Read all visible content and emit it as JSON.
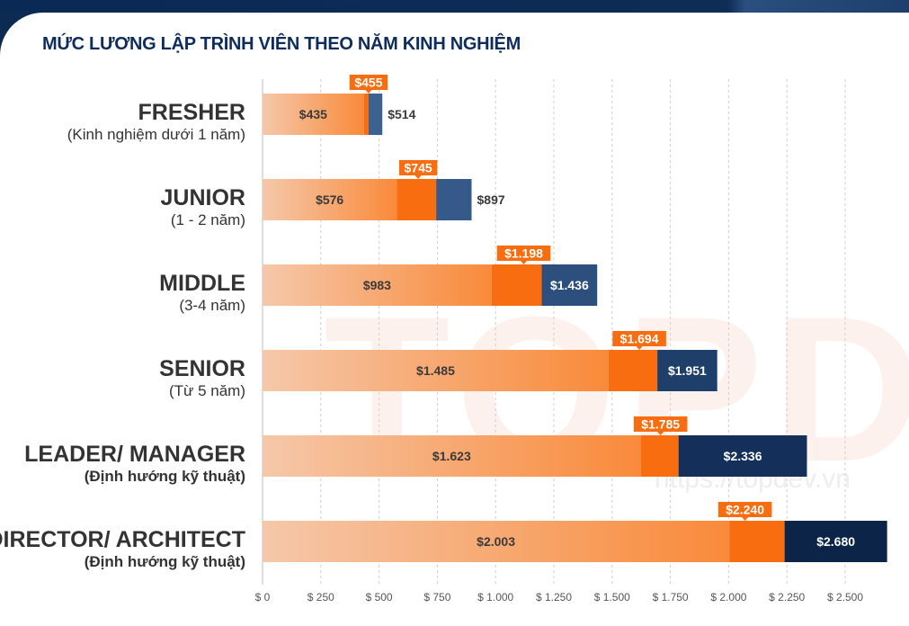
{
  "title": "MỨC LƯƠNG LẬP TRÌNH VIÊN THEO NĂM KINH NGHIỆM",
  "watermark": {
    "logo": "TOPDEV",
    "url": "https://topdev.vn"
  },
  "colors": {
    "low_start": "#f5c8aa",
    "low_end": "#f98a3a",
    "median": "#f76d0f",
    "high": [
      "#3d6291",
      "#355a8a",
      "#2c4f7e",
      "#1f3f6b",
      "#132f5a",
      "#0b2448"
    ],
    "title": "#0f2d5c"
  },
  "chart_data": {
    "type": "bar",
    "orientation": "horizontal",
    "stacked_ranges": true,
    "title": "MỨC LƯƠNG LẬP TRÌNH VIÊN THEO NĂM KINH NGHIỆM",
    "xlim": [
      0,
      2680
    ],
    "grid": true,
    "x_ticks": [
      0,
      250,
      500,
      750,
      1000,
      1250,
      1500,
      1750,
      2000,
      2250,
      2500
    ],
    "x_tick_labels": [
      "$ 0",
      "$ 250",
      "$ 500",
      "$ 750",
      "$ 1.000",
      "$ 1.250",
      "$ 1.500",
      "$ 1.750",
      "$ 2.000",
      "$ 2.250",
      "$ 2.500"
    ],
    "categories": [
      {
        "name": "FRESHER",
        "sub": "(Kinh nghiệm dưới 1 năm)",
        "sub_bold": false
      },
      {
        "name": "JUNIOR",
        "sub": "(1 - 2 năm)",
        "sub_bold": false
      },
      {
        "name": "MIDDLE",
        "sub": "(3-4 năm)",
        "sub_bold": false
      },
      {
        "name": "SENIOR",
        "sub": "(Từ 5 năm)",
        "sub_bold": false
      },
      {
        "name": "LEADER/ MANAGER",
        "sub": "(Định hướng kỹ thuật)",
        "sub_bold": true
      },
      {
        "name": "DIRECTOR/ ARCHITECT",
        "sub": "(Định hướng kỹ thuật)",
        "sub_bold": true
      }
    ],
    "series": [
      {
        "values": [
          435,
          576,
          983,
          1485,
          1623,
          2003
        ],
        "labels": [
          "$435",
          "$576",
          "$983",
          "$1.485",
          "$1.623",
          "$2.003"
        ]
      },
      {
        "values": [
          455,
          745,
          1198,
          1694,
          1785,
          2240
        ],
        "labels": [
          "$455",
          "$745",
          "$1.198",
          "$1.694",
          "$1.785",
          "$2.240"
        ]
      },
      {
        "values": [
          514,
          897,
          1436,
          1951,
          2336,
          2680
        ],
        "labels": [
          "$514",
          "$897",
          "$1.436",
          "$1.951",
          "$2.336",
          "$2.680"
        ]
      }
    ]
  }
}
